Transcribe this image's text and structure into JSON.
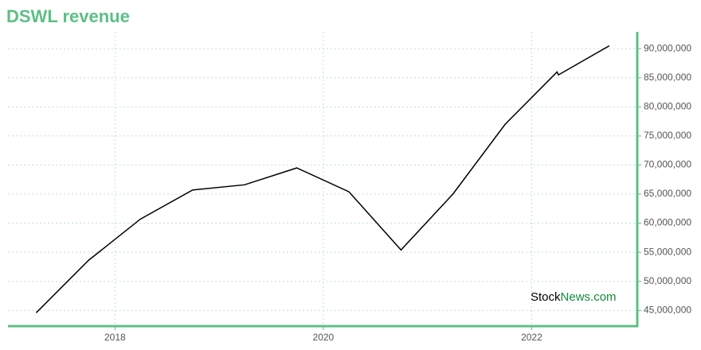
{
  "chart_data": {
    "type": "line",
    "title": "DSWL revenue",
    "x": [
      "2017-03-31",
      "2017-09-30",
      "2018-03-31",
      "2018-09-30",
      "2019-03-31",
      "2019-09-30",
      "2020-03-31",
      "2020-09-30",
      "2021-03-31",
      "2021-09-30",
      "2022-03-31",
      "2022-04-05",
      "2022-09-30"
    ],
    "series": [
      {
        "name": "DSWL revenue",
        "color": "#000000",
        "values": [
          44600000,
          53600000,
          60700000,
          65700000,
          66600000,
          69500000,
          65400000,
          55400000,
          65000000,
          77000000,
          86000000,
          85500000,
          90500000
        ]
      }
    ],
    "xlim": [
      "2016-12-22",
      "2023-01-06"
    ],
    "xticks": [
      {
        "value": "2018-01-01",
        "label": "2018"
      },
      {
        "value": "2020-01-01",
        "label": "2020"
      },
      {
        "value": "2022-01-01",
        "label": "2022"
      }
    ],
    "ylim": [
      42300000,
      92900000
    ],
    "yticks": [
      {
        "value": 45000000,
        "label": "45,000,000"
      },
      {
        "value": 50000000,
        "label": "50,000,000"
      },
      {
        "value": 55000000,
        "label": "55,000,000"
      },
      {
        "value": 60000000,
        "label": "60,000,000"
      },
      {
        "value": 65000000,
        "label": "65,000,000"
      },
      {
        "value": 70000000,
        "label": "70,000,000"
      },
      {
        "value": 75000000,
        "label": "75,000,000"
      },
      {
        "value": 80000000,
        "label": "80,000,000"
      },
      {
        "value": 85000000,
        "label": "85,000,000"
      },
      {
        "value": 90000000,
        "label": "90,000,000"
      }
    ],
    "grid": true,
    "axis_color": "#5cbf85",
    "watermark": {
      "part1": "Stock",
      "part2": "News.com",
      "color1": "#000000",
      "color2": "#138a3a"
    }
  }
}
